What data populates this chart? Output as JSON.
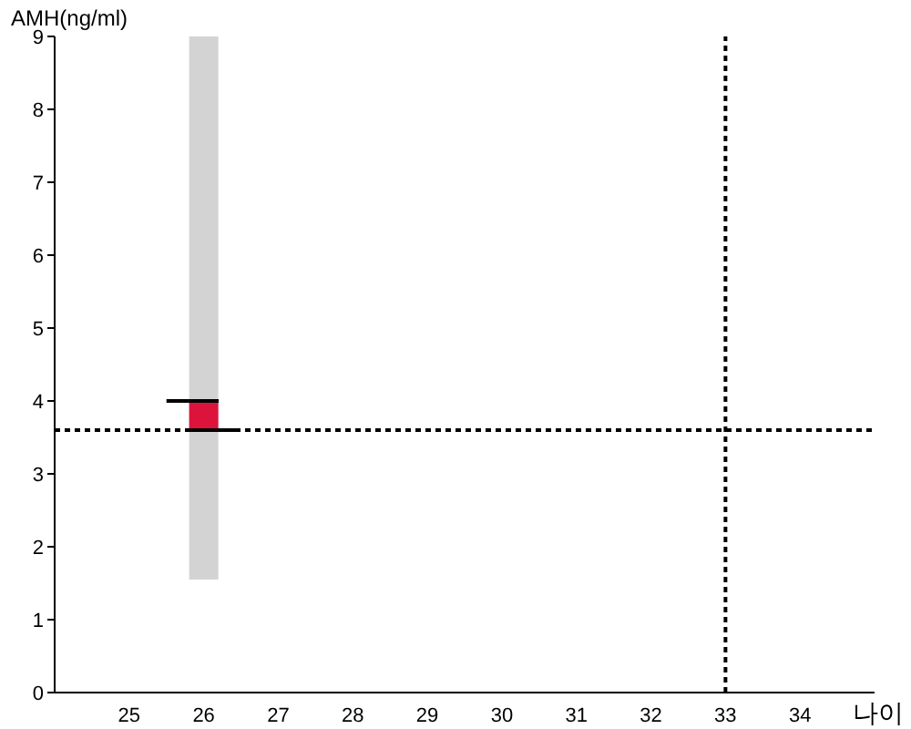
{
  "chart_data": {
    "type": "bar",
    "ylabel": "AMH(ng/ml)",
    "xlabel": "나이",
    "x": [
      26
    ],
    "series": [
      {
        "color": "#d3d3d3",
        "base": [
          1.55
        ],
        "values": [
          7.45
        ]
      },
      {
        "color": "#dc143c",
        "base": [
          3.6
        ],
        "values": [
          0.4
        ]
      },
      {
        "type": "line",
        "color": "#000000",
        "x": [
          25.5,
          26.2
        ],
        "values": [
          4,
          4
        ]
      },
      {
        "type": "line",
        "color": "#000000",
        "x": [
          25.75,
          26.45
        ],
        "values": [
          3.6,
          3.6
        ]
      }
    ],
    "xlim": [
      24,
      35
    ],
    "xticks": [
      25,
      26,
      27,
      28,
      29,
      30,
      31,
      32,
      33,
      34
    ],
    "ylim": [
      0,
      9
    ],
    "yticks": [
      0,
      1,
      2,
      3,
      4,
      5,
      6,
      7,
      8,
      9
    ],
    "ref_lines": [
      {
        "axis": "y",
        "value": 3.6,
        "color": "#000000",
        "line_style": "dotted"
      },
      {
        "axis": "x",
        "value": 33,
        "color": "#000000",
        "line_style": "dotted"
      }
    ],
    "marker": "none"
  }
}
